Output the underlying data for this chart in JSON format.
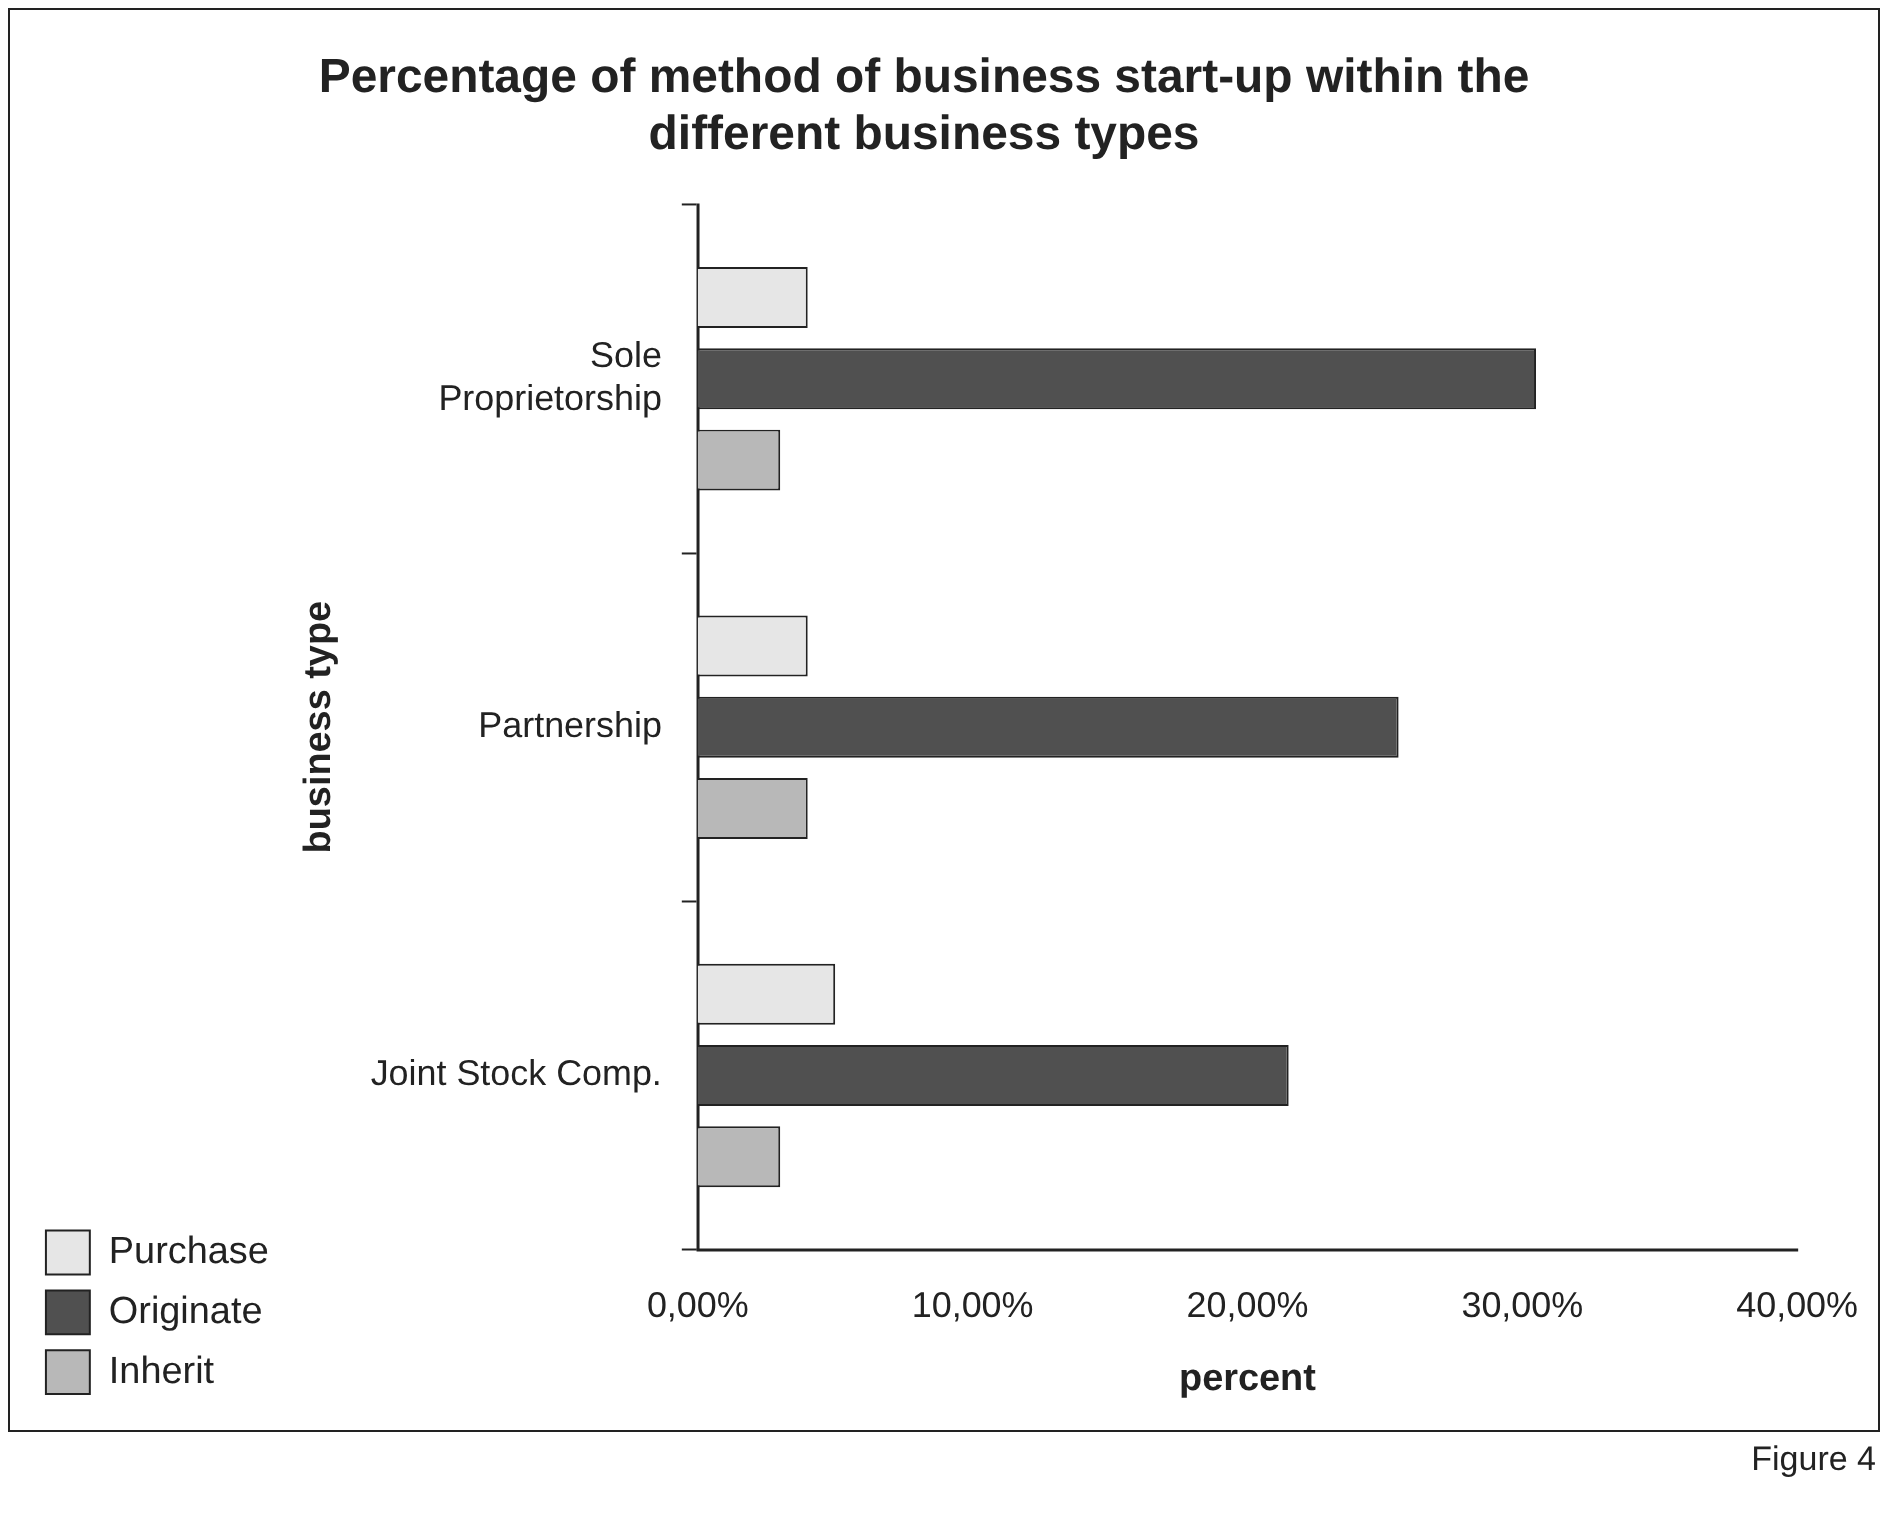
{
  "chart_data": {
    "type": "bar",
    "orientation": "horizontal",
    "title": "Percentage of method of business start-up within the different business types",
    "xlabel": "percent",
    "ylabel": "business type",
    "categories": [
      "Sole Proprietorship",
      "Partnership",
      "Joint Stock Comp."
    ],
    "series": [
      {
        "name": "Purchase",
        "color": "#e6e6e6",
        "values": [
          4,
          4,
          5
        ]
      },
      {
        "name": "Originate",
        "color": "#505050",
        "values": [
          30.5,
          25.5,
          21.5
        ]
      },
      {
        "name": "Inherit",
        "color": "#b8b8b8",
        "values": [
          3,
          4,
          3
        ]
      }
    ],
    "xlim": [
      0,
      40
    ],
    "xticks": [
      {
        "value": 0,
        "label": "0,00%"
      },
      {
        "value": 10,
        "label": "10,00%"
      },
      {
        "value": 20,
        "label": "20,00%"
      },
      {
        "value": 30,
        "label": "30,00%"
      },
      {
        "value": 40,
        "label": "40,00%"
      }
    ],
    "grid": false,
    "legend": "bottom left",
    "annotations": [
      "Figure 4"
    ]
  }
}
